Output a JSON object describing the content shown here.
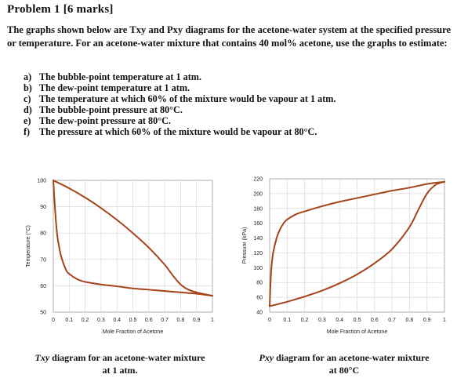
{
  "header": {
    "title": "Problem 1 [6 marks]"
  },
  "intro": {
    "text": "The graphs shown below are Txy and Pxy diagrams for the acetone-water system at the specified pressure or temperature. For an acetone-water mixture that contains 40 mol% acetone, use the graphs to estimate:"
  },
  "questions": [
    {
      "marker": "a)",
      "text": "The bubble-point temperature at 1 atm."
    },
    {
      "marker": "b)",
      "text": "The dew-point temperature at 1 atm."
    },
    {
      "marker": "c)",
      "text": "The temperature at which 60% of the mixture would be vapour at 1 atm."
    },
    {
      "marker": "d)",
      "text": "The bubble-point pressure at 80°C."
    },
    {
      "marker": "e)",
      "text": "The dew-point pressure at 80°C."
    },
    {
      "marker": "f)",
      "text": "The pressure at which 60% of the mixture would be vapour at 80°C."
    }
  ],
  "chart_data": [
    {
      "type": "line",
      "xlabel": "Mole Fraction of Acetone",
      "ylabel": "Temperature (°C)",
      "xlim": [
        0,
        1
      ],
      "ylim": [
        50,
        100
      ],
      "x_ticks": [
        "0",
        "0.1",
        "0.2",
        "0.3",
        "0.4",
        "0.5",
        "0.6",
        "0.7",
        "0.8",
        "0.9",
        "1"
      ],
      "y_ticks": [
        "50",
        "60",
        "70",
        "80",
        "90",
        "100"
      ],
      "grid": true,
      "line_color": "#a5441a",
      "series": [
        {
          "x": [
            0,
            0.01,
            0.02,
            0.03,
            0.05,
            0.08,
            0.1,
            0.15,
            0.2,
            0.3,
            0.4,
            0.5,
            0.6,
            0.7,
            0.8,
            0.9,
            1.0
          ],
          "y": [
            100,
            90,
            82,
            77,
            71,
            66,
            64.5,
            62.5,
            61.5,
            60.5,
            59.8,
            59,
            58.5,
            58,
            57.5,
            57,
            56.2
          ]
        },
        {
          "x": [
            0,
            0.1,
            0.2,
            0.3,
            0.4,
            0.5,
            0.6,
            0.7,
            0.75,
            0.8,
            0.85,
            0.9,
            0.95,
            1.0
          ],
          "y": [
            100,
            97,
            93.5,
            89.5,
            85,
            80,
            74.5,
            68,
            64,
            60.5,
            58.5,
            57.5,
            56.8,
            56.2
          ]
        }
      ]
    },
    {
      "type": "line",
      "xlabel": "Mole Fraction of Acetone",
      "ylabel": "Pressure (kPa)",
      "xlim": [
        0,
        1
      ],
      "ylim": [
        40,
        220
      ],
      "x_ticks": [
        "0",
        "0.1",
        "0.2",
        "0.3",
        "0.4",
        "0.5",
        "0.6",
        "0.7",
        "0.8",
        "0.9",
        "1"
      ],
      "y_ticks": [
        "40",
        "60",
        "80",
        "100",
        "120",
        "140",
        "160",
        "180",
        "200",
        "220"
      ],
      "grid": true,
      "line_color": "#a5441a",
      "series": [
        {
          "x": [
            0,
            0.005,
            0.01,
            0.02,
            0.04,
            0.06,
            0.08,
            0.1,
            0.15,
            0.2,
            0.3,
            0.4,
            0.5,
            0.6,
            0.7,
            0.8,
            0.9,
            1.0
          ],
          "y": [
            48,
            80,
            100,
            120,
            140,
            152,
            160,
            165,
            172,
            176,
            183,
            189,
            194,
            199,
            204,
            208,
            213,
            216
          ]
        },
        {
          "x": [
            0,
            0.1,
            0.2,
            0.3,
            0.4,
            0.5,
            0.6,
            0.7,
            0.8,
            0.85,
            0.9,
            0.95,
            1.0
          ],
          "y": [
            48,
            54,
            61,
            69,
            79,
            91,
            106,
            125,
            155,
            178,
            200,
            212,
            216
          ]
        }
      ]
    }
  ],
  "captions": [
    {
      "label": "Txy",
      "text_line1": " diagram for an acetone-water mixture",
      "text_line2": "at 1 atm."
    },
    {
      "label": "Pxy",
      "text_line1": " diagram for an acetone-water mixture",
      "text_line2": "at 80°C"
    }
  ]
}
